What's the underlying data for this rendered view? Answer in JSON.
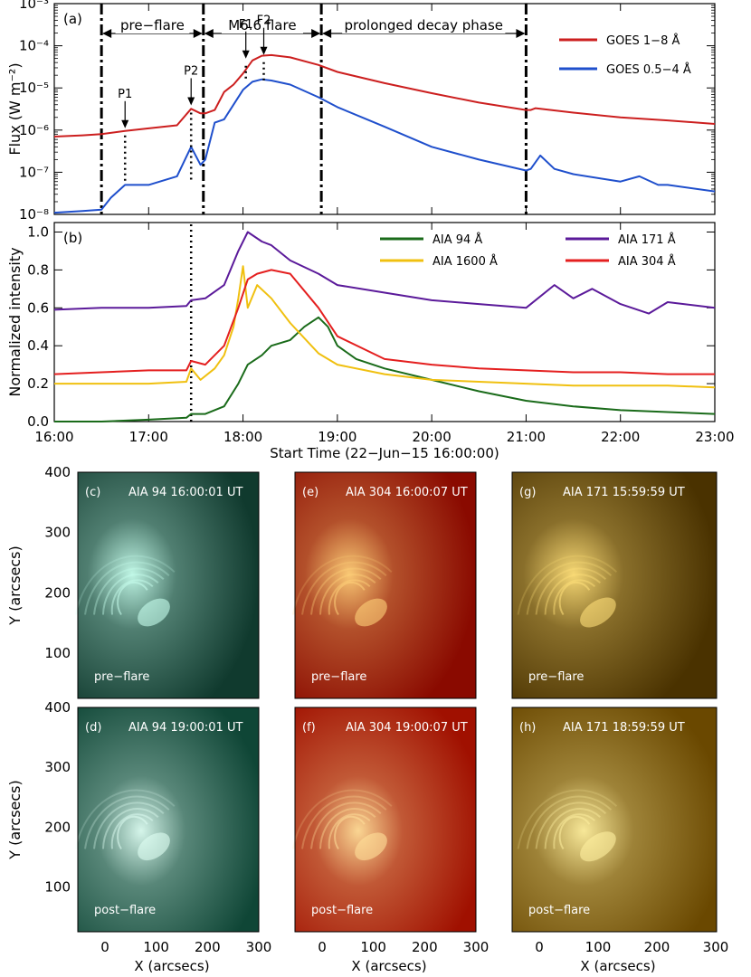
{
  "chart_data": [
    {
      "type": "line",
      "panel": "(a)",
      "ylabel": "Flux (W m⁻²)",
      "yscale": "log",
      "ylim": [
        1e-08,
        0.001
      ],
      "xlim": [
        16.0,
        23.0
      ],
      "yticks": [
        "10⁻⁸",
        "10⁻⁷",
        "10⁻⁶",
        "10⁻⁵",
        "10⁻⁴",
        "10⁻³"
      ],
      "legend": "top-right",
      "phases": [
        {
          "label": "pre−flare",
          "start": 16.5,
          "end": 17.58
        },
        {
          "label": "M6.6 flare",
          "start": 17.58,
          "end": 18.83
        },
        {
          "label": "prolonged decay phase",
          "start": 18.83,
          "end": 21.0
        }
      ],
      "phase_lines_x": [
        16.5,
        17.58,
        18.83,
        21.0
      ],
      "markers": [
        {
          "label": "P1",
          "x": 16.75,
          "y": 1e-06
        },
        {
          "label": "P2",
          "x": 17.45,
          "y": 3.5e-06
        },
        {
          "label": "F1",
          "x": 18.03,
          "y": 4.5e-05
        },
        {
          "label": "F2",
          "x": 18.22,
          "y": 5.5e-05
        }
      ],
      "series": [
        {
          "name": "GOES 1−8 Å",
          "color": "#cc1f1f",
          "x": [
            16.0,
            16.3,
            16.5,
            16.75,
            17.0,
            17.3,
            17.45,
            17.55,
            17.6,
            17.7,
            17.8,
            17.9,
            18.0,
            18.1,
            18.2,
            18.3,
            18.5,
            18.8,
            19.0,
            19.5,
            20.0,
            20.5,
            21.0,
            21.05,
            21.1,
            21.5,
            22.0,
            22.5,
            23.0
          ],
          "y": [
            7e-07,
            7.5e-07,
            8e-07,
            9.5e-07,
            1.1e-06,
            1.3e-06,
            3.2e-06,
            2.5e-06,
            2.5e-06,
            3e-06,
            8e-06,
            1.2e-05,
            2.2e-05,
            4.5e-05,
            5.8e-05,
            6e-05,
            5.3e-05,
            3.5e-05,
            2.4e-05,
            1.3e-05,
            7.5e-06,
            4.5e-06,
            3e-06,
            3e-06,
            3.3e-06,
            2.6e-06,
            2e-06,
            1.7e-06,
            1.4e-06
          ]
        },
        {
          "name": "GOES 0.5−4 Å",
          "color": "#1f4fcc",
          "x": [
            16.0,
            16.3,
            16.5,
            16.6,
            16.75,
            17.0,
            17.3,
            17.45,
            17.55,
            17.6,
            17.7,
            17.8,
            17.9,
            18.0,
            18.1,
            18.2,
            18.3,
            18.5,
            18.8,
            19.0,
            19.5,
            20.0,
            20.5,
            21.0,
            21.05,
            21.15,
            21.3,
            21.5,
            22.0,
            22.2,
            22.4,
            22.5,
            23.0
          ],
          "y": [
            1.1e-08,
            1.2e-08,
            1.3e-08,
            2.5e-08,
            5e-08,
            5e-08,
            8e-08,
            4e-07,
            1.5e-07,
            2e-07,
            1.5e-06,
            1.8e-06,
            4e-06,
            9e-06,
            1.4e-05,
            1.6e-05,
            1.5e-05,
            1.2e-05,
            6e-06,
            3.5e-06,
            1.2e-06,
            4e-07,
            2e-07,
            1.1e-07,
            1.2e-07,
            2.5e-07,
            1.2e-07,
            9e-08,
            6e-08,
            8e-08,
            5e-08,
            5e-08,
            3.5e-08
          ]
        }
      ]
    },
    {
      "type": "line",
      "panel": "(b)",
      "ylabel": "Normalized intensity",
      "xlabel": "Start Time (22−Jun−15 16:00:00)",
      "ylim": [
        0.0,
        1.05
      ],
      "xlim": [
        16.0,
        23.0
      ],
      "xticks": [
        "16:00",
        "17:00",
        "18:00",
        "19:00",
        "20:00",
        "21:00",
        "22:00",
        "23:00"
      ],
      "yticks": [
        "0.0",
        "0.2",
        "0.4",
        "0.6",
        "0.8",
        "1.0"
      ],
      "vline_x": 17.45,
      "series": [
        {
          "name": "AIA 94 Å",
          "color": "#1a6b1a",
          "x": [
            16.0,
            16.5,
            17.0,
            17.4,
            17.45,
            17.6,
            17.8,
            17.95,
            18.05,
            18.2,
            18.3,
            18.5,
            18.65,
            18.8,
            18.9,
            19.0,
            19.2,
            19.5,
            20.0,
            20.5,
            21.0,
            21.5,
            22.0,
            22.5,
            23.0
          ],
          "y": [
            0.0,
            0.0,
            0.01,
            0.02,
            0.04,
            0.04,
            0.08,
            0.2,
            0.3,
            0.35,
            0.4,
            0.43,
            0.5,
            0.55,
            0.5,
            0.4,
            0.33,
            0.28,
            0.22,
            0.16,
            0.11,
            0.08,
            0.06,
            0.05,
            0.04
          ]
        },
        {
          "name": "AIA 171 Å",
          "color": "#5b1a9a",
          "x": [
            16.0,
            16.5,
            17.0,
            17.4,
            17.45,
            17.6,
            17.8,
            17.95,
            18.05,
            18.2,
            18.3,
            18.5,
            18.8,
            19.0,
            19.5,
            20.0,
            20.5,
            21.0,
            21.3,
            21.5,
            21.7,
            22.0,
            22.3,
            22.5,
            23.0
          ],
          "y": [
            0.59,
            0.6,
            0.6,
            0.61,
            0.64,
            0.65,
            0.72,
            0.9,
            1.0,
            0.95,
            0.93,
            0.85,
            0.78,
            0.72,
            0.68,
            0.64,
            0.62,
            0.6,
            0.72,
            0.65,
            0.7,
            0.62,
            0.57,
            0.63,
            0.6
          ]
        },
        {
          "name": "AIA 1600 Å",
          "color": "#f0c010",
          "x": [
            16.0,
            16.5,
            17.0,
            17.4,
            17.45,
            17.55,
            17.7,
            17.8,
            17.9,
            17.95,
            18.0,
            18.05,
            18.15,
            18.3,
            18.5,
            18.8,
            19.0,
            19.5,
            20.0,
            20.5,
            21.0,
            21.5,
            22.0,
            22.5,
            23.0
          ],
          "y": [
            0.2,
            0.2,
            0.2,
            0.21,
            0.28,
            0.22,
            0.28,
            0.35,
            0.5,
            0.65,
            0.82,
            0.6,
            0.72,
            0.65,
            0.52,
            0.36,
            0.3,
            0.25,
            0.22,
            0.21,
            0.2,
            0.19,
            0.19,
            0.19,
            0.18
          ]
        },
        {
          "name": "AIA 304 Å",
          "color": "#e41f1f",
          "x": [
            16.0,
            16.5,
            17.0,
            17.4,
            17.45,
            17.6,
            17.8,
            17.95,
            18.05,
            18.15,
            18.3,
            18.5,
            18.8,
            19.0,
            19.5,
            20.0,
            20.5,
            21.0,
            21.5,
            22.0,
            22.5,
            23.0
          ],
          "y": [
            0.25,
            0.26,
            0.27,
            0.27,
            0.32,
            0.3,
            0.4,
            0.6,
            0.75,
            0.78,
            0.8,
            0.78,
            0.6,
            0.45,
            0.33,
            0.3,
            0.28,
            0.27,
            0.26,
            0.26,
            0.25,
            0.25
          ]
        }
      ]
    },
    {
      "type": "heatmap",
      "panel_grid": {
        "xlabel": "X (arcsecs)",
        "ylabel": "Y (arcsecs)",
        "xticks": [
          "0",
          "100",
          "200",
          "300"
        ],
        "yticks": [
          "100",
          "200",
          "300",
          "400"
        ]
      },
      "panels": [
        {
          "tag": "(c)",
          "title": "AIA 94 16:00:01 UT",
          "note": "pre−flare",
          "base": "#103a2e",
          "glow": "#c8ffee"
        },
        {
          "tag": "(e)",
          "title": "AIA 304 16:00:07 UT",
          "note": "pre−flare",
          "base": "#8a0a00",
          "glow": "#ffd27a"
        },
        {
          "tag": "(g)",
          "title": "AIA 171 15:59:59 UT",
          "note": "pre−flare",
          "base": "#4a3200",
          "glow": "#ffe07a"
        },
        {
          "tag": "(d)",
          "title": "AIA 94 19:00:01 UT",
          "note": "post−flare",
          "base": "#0f4636",
          "glow": "#e0fff4"
        },
        {
          "tag": "(f)",
          "title": "AIA 304 19:00:07 UT",
          "note": "post−flare",
          "base": "#a01000",
          "glow": "#ffe09a"
        },
        {
          "tag": "(h)",
          "title": "AIA 171 18:59:59 UT",
          "note": "post−flare",
          "base": "#6a4800",
          "glow": "#fff0a0"
        }
      ]
    }
  ]
}
